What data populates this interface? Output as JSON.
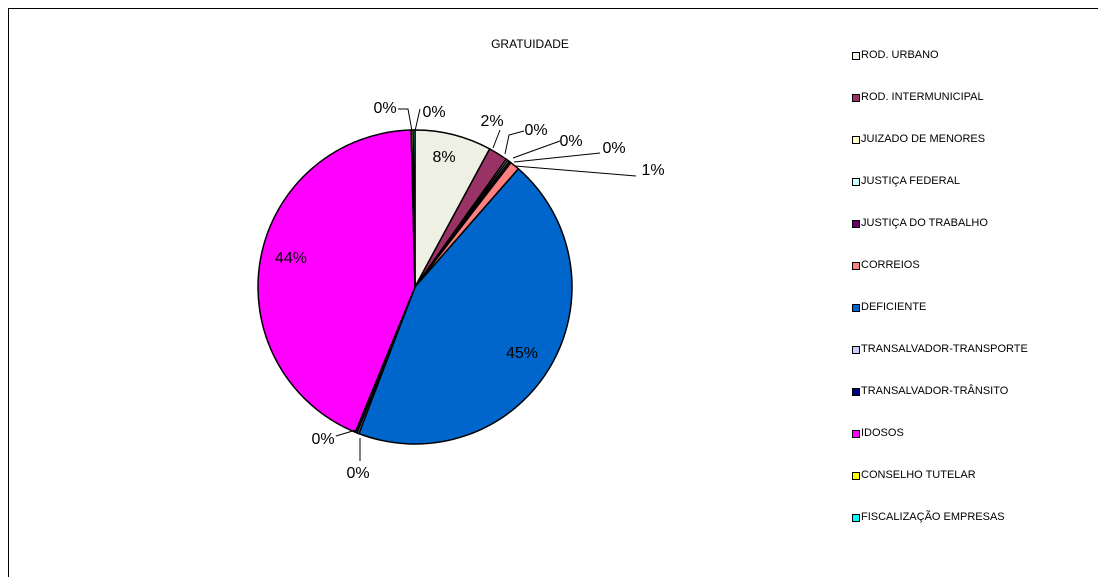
{
  "chart_data": {
    "type": "pie",
    "title": "GRATUIDADE",
    "legend_position": "right",
    "slices": [
      {
        "name": "ROD. URBANO",
        "value": 8,
        "label": "8%",
        "color": "#EDF0E2"
      },
      {
        "name": "ROD. INTERMUNICIPAL",
        "value": 2,
        "label": "2%",
        "color": "#993366"
      },
      {
        "name": "JUIZADO DE MENORES",
        "value": 0.2,
        "label": "0%",
        "color": "#FFFFCC"
      },
      {
        "name": "JUSTIÇA FEDERAL",
        "value": 0.2,
        "label": "0%",
        "color": "#CCFFFF"
      },
      {
        "name": "JUSTIÇA DO TRABALHO",
        "value": 0.2,
        "label": "0%",
        "color": "#660066"
      },
      {
        "name": "CORREIOS",
        "value": 1,
        "label": "1%",
        "color": "#FF8080"
      },
      {
        "name": "DEFICIENTE",
        "value": 45,
        "label": "45%",
        "color": "#0066CC"
      },
      {
        "name": "TRANSALVADOR-TRANSPORTE",
        "value": 0.2,
        "label": "0%",
        "color": "#CCCCFF"
      },
      {
        "name": "TRANSALVADOR-TRÂNSITO",
        "value": 0.2,
        "label": "0%",
        "color": "#000080"
      },
      {
        "name": "IDOSOS",
        "value": 44,
        "label": "44%",
        "color": "#FF00FF"
      },
      {
        "name": "CONSELHO TUTELAR",
        "value": 0.2,
        "label": "0%",
        "color": "#FFFF00"
      },
      {
        "name": "FISCALIZAÇÃO EMPRESAS",
        "value": 0.2,
        "label": "0%",
        "color": "#00FFFF"
      }
    ]
  }
}
